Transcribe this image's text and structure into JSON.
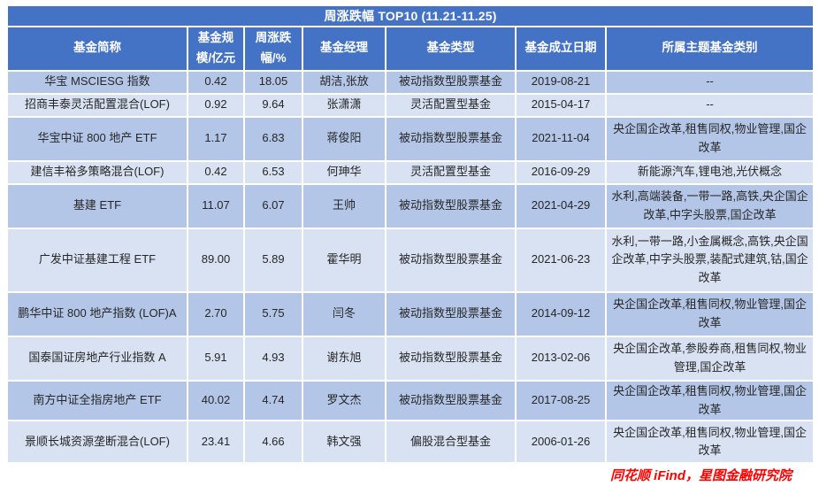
{
  "colors": {
    "header_bg": "#4472C4",
    "row_dark": "#B4C6E7",
    "row_light": "#D9E2F2",
    "header_text": "#FFFFFF",
    "cell_text": "#262626",
    "source_text": "#FF0000"
  },
  "chart_data": {
    "type": "table",
    "title": "周涨跌幅 TOP10 (11.21-11.25)",
    "columns": [
      "基金简称",
      "基金规模/亿元",
      "周涨跌幅/%",
      "基金经理",
      "基金类型",
      "基金成立日期",
      "所属主题基金类别"
    ],
    "rows": [
      [
        "华宝 MSCIESG 指数",
        "0.42",
        "18.05",
        "胡洁,张放",
        "被动指数型股票基金",
        "2019-08-21",
        "--"
      ],
      [
        "招商丰泰灵活配置混合(LOF)",
        "0.92",
        "9.64",
        "张潇潇",
        "灵活配置型基金",
        "2015-04-17",
        "--"
      ],
      [
        "华宝中证 800 地产 ETF",
        "1.17",
        "6.83",
        "蒋俊阳",
        "被动指数型股票基金",
        "2021-11-04",
        "央企国企改革,租售同权,物业管理,国企改革"
      ],
      [
        "建信丰裕多策略混合(LOF)",
        "0.42",
        "6.53",
        "何珅华",
        "灵活配置型基金",
        "2016-09-29",
        "新能源汽车,锂电池,光伏概念"
      ],
      [
        "基建 ETF",
        "11.07",
        "6.07",
        "王帅",
        "被动指数型股票基金",
        "2021-04-29",
        "水利,高端装备,一带一路,高铁,央企国企改革,中字头股票,国企改革"
      ],
      [
        "广发中证基建工程 ETF",
        "89.00",
        "5.89",
        "霍华明",
        "被动指数型股票基金",
        "2021-06-23",
        "水利,一带一路,小金属概念,高铁,央企国企改革,中字头股票,装配式建筑,钴,国企改革"
      ],
      [
        "鹏华中证 800 地产指数 (LOF)A",
        "2.70",
        "5.75",
        "闫冬",
        "被动指数型股票基金",
        "2014-09-12",
        "央企国企改革,租售同权,物业管理,国企改革"
      ],
      [
        "国泰国证房地产行业指数 A",
        "5.91",
        "4.93",
        "谢东旭",
        "被动指数型股票基金",
        "2013-02-06",
        "央企国企改革,参股券商,租售同权,物业管理,国企改革"
      ],
      [
        "南方中证全指房地产 ETF",
        "40.02",
        "4.74",
        "罗文杰",
        "被动指数型股票基金",
        "2017-08-25",
        "央企国企改革,租售同权,物业管理,国企改革"
      ],
      [
        "景顺长城资源垄断混合(LOF)",
        "23.41",
        "4.66",
        "韩文强",
        "偏股混合型基金",
        "2006-01-26",
        "央企国企改革,租售同权,物业管理,国企改革"
      ]
    ],
    "source": "同花顺 iFind，星图金融研究院",
    "layout_hints": {
      "banded_rows": true,
      "first_band": "dark",
      "grid": "white 2px separators"
    }
  }
}
